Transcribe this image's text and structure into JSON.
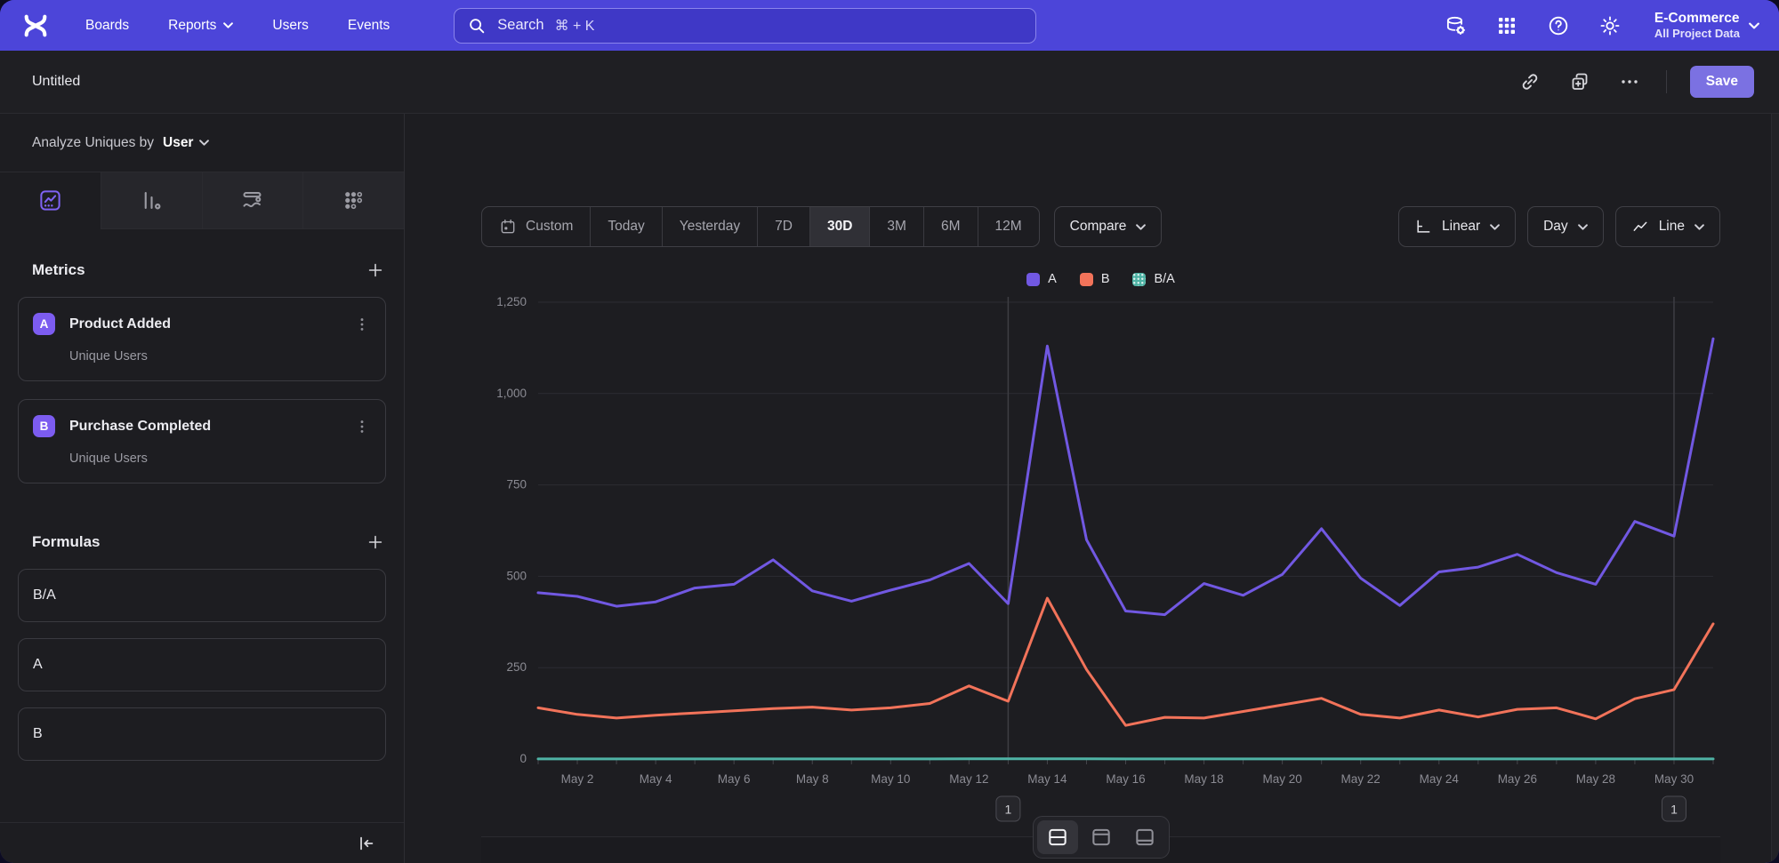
{
  "topbar": {
    "nav": [
      {
        "label": "Boards"
      },
      {
        "label": "Reports",
        "has_dropdown": true
      },
      {
        "label": "Users"
      },
      {
        "label": "Events"
      }
    ],
    "search_placeholder": "Search",
    "search_shortcut": "⌘ + K",
    "icons": [
      "data-management-icon",
      "apps-grid-icon",
      "help-icon",
      "settings-gear-icon"
    ],
    "project": {
      "name": "E-Commerce",
      "scope": "All Project Data"
    }
  },
  "report_header": {
    "title": "Untitled",
    "actions": {
      "copy_link": "copy-link-icon",
      "duplicate": "duplicate-icon",
      "more": "more-options-icon"
    },
    "save_label": "Save"
  },
  "sidebar": {
    "analyze_label": "Analyze Uniques by",
    "analyze_value": "User",
    "tabs": [
      "insights",
      "funnels",
      "flows",
      "retention"
    ],
    "active_tab": "insights",
    "metrics": {
      "title": "Metrics",
      "items": [
        {
          "letter": "A",
          "name": "Product Added",
          "subtitle": "Unique Users"
        },
        {
          "letter": "B",
          "name": "Purchase Completed",
          "subtitle": "Unique Users"
        }
      ]
    },
    "formulas": {
      "title": "Formulas",
      "items": [
        {
          "label": "B/A"
        },
        {
          "label": "A"
        },
        {
          "label": "B"
        }
      ]
    }
  },
  "controls": {
    "ranges": [
      {
        "label": "Custom",
        "has_icon": true
      },
      {
        "label": "Today"
      },
      {
        "label": "Yesterday"
      },
      {
        "label": "7D"
      },
      {
        "label": "30D",
        "active": true
      },
      {
        "label": "3M"
      },
      {
        "label": "6M"
      },
      {
        "label": "12M"
      }
    ],
    "compare_label": "Compare",
    "scale_label": "Linear",
    "interval_label": "Day",
    "chart_type_label": "Line"
  },
  "colors": {
    "accent": "#4c45d9",
    "save_button": "#7b71e2",
    "series_a": "#7158e2",
    "series_b": "#f2735a",
    "series_ba": "#4fb3a5"
  },
  "chart_data": {
    "type": "line",
    "title": "",
    "xlabel": "",
    "ylabel": "",
    "grid": "horizontal",
    "legend_position": "top-center",
    "ylim": [
      0,
      1250
    ],
    "categories": [
      "May 1",
      "May 2",
      "May 3",
      "May 4",
      "May 5",
      "May 6",
      "May 7",
      "May 8",
      "May 9",
      "May 10",
      "May 11",
      "May 12",
      "May 13",
      "May 14",
      "May 15",
      "May 16",
      "May 17",
      "May 18",
      "May 19",
      "May 20",
      "May 21",
      "May 22",
      "May 23",
      "May 24",
      "May 25",
      "May 26",
      "May 27",
      "May 28",
      "May 29",
      "May 30",
      "May 31"
    ],
    "series": [
      {
        "name": "A",
        "color": "#7158e2",
        "values": [
          455,
          445,
          418,
          430,
          468,
          478,
          545,
          460,
          432,
          462,
          490,
          535,
          425,
          1130,
          600,
          405,
          395,
          480,
          448,
          505,
          630,
          495,
          420,
          512,
          525,
          560,
          510,
          478,
          650,
          610,
          1150
        ]
      },
      {
        "name": "B",
        "color": "#f2735a",
        "values": [
          140,
          122,
          112,
          120,
          126,
          132,
          138,
          142,
          134,
          140,
          152,
          200,
          158,
          440,
          245,
          92,
          114,
          112,
          130,
          148,
          166,
          122,
          112,
          134,
          115,
          136,
          140,
          110,
          165,
          190,
          370
        ]
      },
      {
        "name": "B/A",
        "color": "#4fb3a5",
        "pattern": "dotted",
        "values": [
          0.31,
          0.27,
          0.27,
          0.28,
          0.27,
          0.28,
          0.25,
          0.31,
          0.31,
          0.3,
          0.31,
          0.37,
          0.37,
          0.39,
          0.41,
          0.23,
          0.29,
          0.23,
          0.29,
          0.29,
          0.26,
          0.25,
          0.27,
          0.26,
          0.22,
          0.24,
          0.27,
          0.23,
          0.25,
          0.31,
          0.32
        ]
      }
    ],
    "yticks": [
      {
        "label": "0",
        "value": 0
      },
      {
        "label": "250",
        "value": 250
      },
      {
        "label": "500",
        "value": 500
      },
      {
        "label": "750",
        "value": 750
      },
      {
        "label": "1,000",
        "value": 1000
      },
      {
        "label": "1,250",
        "value": 1250
      }
    ],
    "xticks": [
      {
        "label": "May 2",
        "index": 1
      },
      {
        "label": "May 4",
        "index": 3
      },
      {
        "label": "May 6",
        "index": 5
      },
      {
        "label": "May 8",
        "index": 7
      },
      {
        "label": "May 10",
        "index": 9
      },
      {
        "label": "May 12",
        "index": 11
      },
      {
        "label": "May 14",
        "index": 13
      },
      {
        "label": "May 16",
        "index": 15
      },
      {
        "label": "May 18",
        "index": 17
      },
      {
        "label": "May 20",
        "index": 19
      },
      {
        "label": "May 22",
        "index": 21
      },
      {
        "label": "May 24",
        "index": 23
      },
      {
        "label": "May 26",
        "index": 25
      },
      {
        "label": "May 28",
        "index": 27
      },
      {
        "label": "May 30",
        "index": 29
      }
    ],
    "annotations": [
      {
        "label": "1",
        "index": 12
      },
      {
        "label": "1",
        "index": 29
      }
    ]
  }
}
